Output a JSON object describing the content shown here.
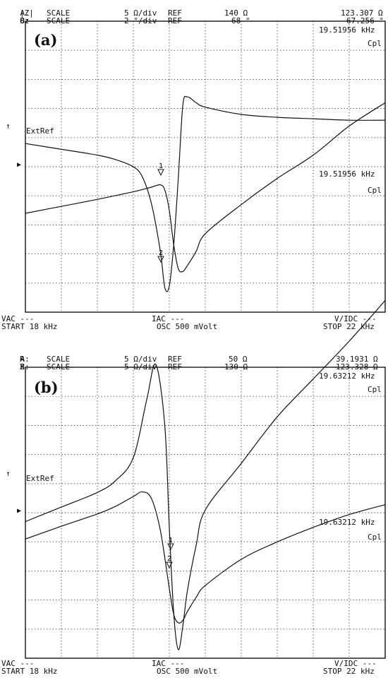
{
  "panels": [
    {
      "label": "(a)",
      "header": {
        "line_a": {
          "chan": "A:",
          "param": "|Z|",
          "scale_label": "SCALE",
          "scale": "5 Ω/div",
          "ref_label": "REF",
          "ref": "140 Ω",
          "readout": "123.307 Ω"
        },
        "line_b": {
          "chan": "B:",
          "param": "θz",
          "scale_label": "SCALE",
          "scale": "2 °/div",
          "ref_label": "REF",
          "ref": "68 °",
          "readout": "67.256 °"
        }
      },
      "marker1": {
        "freq": "19.51956 kHz",
        "mode": "Cpl"
      },
      "marker2": {
        "freq": "19.51956 kHz",
        "mode": "Cpl"
      },
      "ext_ref": "ExtRef",
      "footer": {
        "vac": "VAC ---",
        "iac": "IAC ---",
        "vidc": "V/IDC ---",
        "start": "START 18 kHz",
        "osc": "OSC 500 mVolt",
        "stop": "STOP 22 kHz"
      }
    },
    {
      "label": "(b)",
      "header": {
        "line_a": {
          "chan": "A:",
          "param": "R",
          "scale_label": "SCALE",
          "scale": "5 Ω/div",
          "ref_label": "REF",
          "ref": "50 Ω",
          "readout": "39.1931 Ω"
        },
        "line_b": {
          "chan": "B:",
          "param": "X",
          "scale_label": "SCALE",
          "scale": "5 Ω/div",
          "ref_label": "REF",
          "ref": "130 Ω",
          "readout": "123.328 Ω"
        }
      },
      "marker1": {
        "freq": "19.63212 kHz",
        "mode": "Cpl"
      },
      "marker2": {
        "freq": "19.63212 kHz",
        "mode": "Cpl"
      },
      "ext_ref": "ExtRef",
      "footer": {
        "vac": "VAC ---",
        "iac": "IAC ---",
        "vidc": "V/IDC ---",
        "start": "START 18 kHz",
        "osc": "OSC 500 mVolt",
        "stop": "STOP 22 kHz"
      }
    }
  ],
  "chart_data": [
    {
      "type": "line",
      "title": "(a)",
      "xlabel": "",
      "x_range": [
        18,
        22
      ],
      "x_unit": "kHz",
      "grid": true,
      "series": [
        {
          "name": "|Z|",
          "unit": "Ω",
          "scale_per_div": 5,
          "ref": 140,
          "x": [
            18.0,
            18.4,
            18.8,
            19.2,
            19.4,
            19.5,
            19.55,
            19.6,
            19.65,
            19.7,
            19.75,
            19.8,
            19.9,
            20.0,
            20.4,
            20.8,
            21.2,
            21.6,
            22.0
          ],
          "y": [
            131.5,
            132.7,
            133.9,
            135.2,
            136.0,
            136.4,
            135.5,
            132.0,
            126.0,
            122.0,
            121.5,
            122.5,
            125.0,
            128.0,
            133.0,
            137.5,
            141.5,
            146.5,
            150.5
          ]
        },
        {
          "name": "θz",
          "unit": "°",
          "scale_per_div": 2,
          "ref": 68,
          "x": [
            18.0,
            18.4,
            18.8,
            19.0,
            19.2,
            19.3,
            19.4,
            19.5,
            19.55,
            19.6,
            19.65,
            19.7,
            19.75,
            19.8,
            19.9,
            20.0,
            20.4,
            20.8,
            21.2,
            21.6,
            22.0
          ],
          "y": [
            69.4,
            69.0,
            68.6,
            68.3,
            67.8,
            67.1,
            65.3,
            62.0,
            59.5,
            59.6,
            62.5,
            67.0,
            72.0,
            72.6,
            72.2,
            71.9,
            71.4,
            71.2,
            71.1,
            71.0,
            71.0
          ]
        }
      ]
    },
    {
      "type": "line",
      "title": "(b)",
      "xlabel": "",
      "x_range": [
        18,
        22
      ],
      "x_unit": "kHz",
      "grid": true,
      "series": [
        {
          "name": "R",
          "unit": "Ω",
          "scale_per_div": 5,
          "ref": 50,
          "x": [
            18.0,
            18.4,
            18.8,
            19.0,
            19.2,
            19.35,
            19.45,
            19.55,
            19.6,
            19.65,
            19.7,
            19.75,
            19.8,
            19.9,
            20.0,
            20.4,
            20.8,
            21.2,
            21.6,
            22.0
          ],
          "y": [
            48.0,
            50.5,
            53.0,
            55.0,
            59.0,
            69.0,
            75.0,
            64.5,
            47.0,
            32.0,
            26.0,
            30.0,
            36.0,
            44.0,
            50.0,
            58.0,
            66.0,
            72.5,
            79.0,
            86.0
          ]
        },
        {
          "name": "X",
          "unit": "Ω",
          "scale_per_div": 5,
          "ref": 130,
          "x": [
            18.0,
            18.4,
            18.8,
            19.0,
            19.2,
            19.3,
            19.4,
            19.5,
            19.6,
            19.65,
            19.7,
            19.75,
            19.8,
            19.9,
            20.0,
            20.4,
            20.8,
            21.2,
            21.6,
            22.0
          ],
          "y": [
            125.0,
            127.2,
            129.3,
            130.6,
            132.3,
            133.1,
            132.0,
            126.5,
            116.5,
            112.0,
            110.6,
            111.0,
            112.5,
            115.0,
            117.0,
            121.5,
            124.5,
            127.0,
            129.2,
            130.9
          ]
        }
      ]
    }
  ]
}
